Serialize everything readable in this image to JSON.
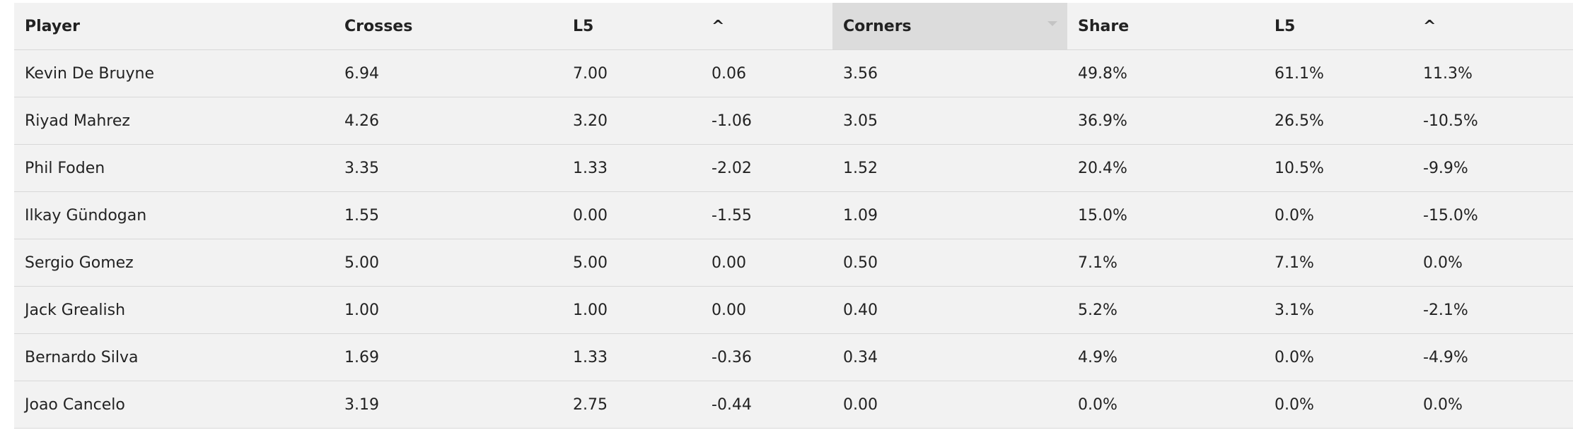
{
  "table": {
    "columns": [
      "Player",
      "Crosses",
      "L5",
      "^",
      "Corners",
      "Share",
      "L5",
      "^"
    ],
    "rows": [
      [
        "Kevin De Bruyne",
        "6.94",
        "7.00",
        "0.06",
        "3.56",
        "49.8%",
        "61.1%",
        "11.3%"
      ],
      [
        "Riyad Mahrez",
        "4.26",
        "3.20",
        "-1.06",
        "3.05",
        "36.9%",
        "26.5%",
        "-10.5%"
      ],
      [
        "Phil Foden",
        "3.35",
        "1.33",
        "-2.02",
        "1.52",
        "20.4%",
        "10.5%",
        "-9.9%"
      ],
      [
        "Ilkay Gündogan",
        "1.55",
        "0.00",
        "-1.55",
        "1.09",
        "15.0%",
        "0.0%",
        "-15.0%"
      ],
      [
        "Sergio Gomez",
        "5.00",
        "5.00",
        "0.00",
        "0.50",
        "7.1%",
        "7.1%",
        "0.0%"
      ],
      [
        "Jack Grealish",
        "1.00",
        "1.00",
        "0.00",
        "0.40",
        "5.2%",
        "3.1%",
        "-2.1%"
      ],
      [
        "Bernardo Silva",
        "1.69",
        "1.33",
        "-0.36",
        "0.34",
        "4.9%",
        "0.0%",
        "-4.9%"
      ],
      [
        "Joao Cancelo",
        "3.19",
        "2.75",
        "-0.44",
        "0.00",
        "0.0%",
        "0.0%",
        "0.0%"
      ]
    ]
  }
}
